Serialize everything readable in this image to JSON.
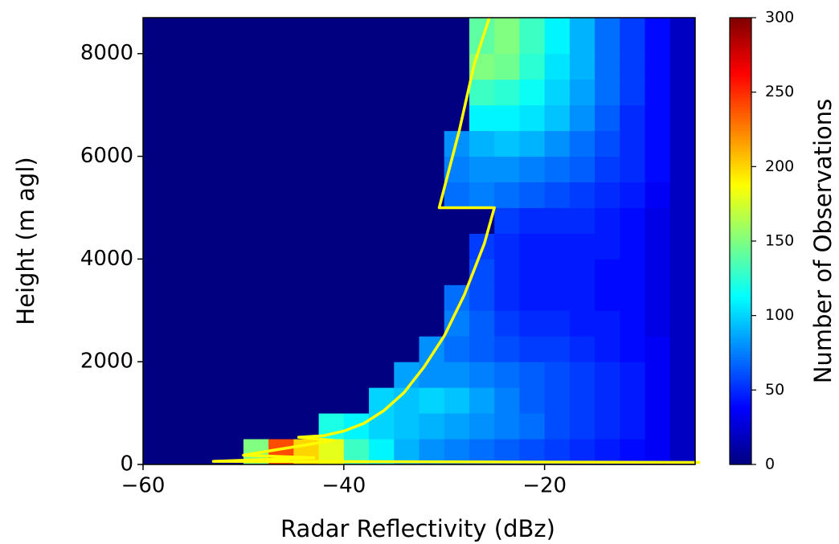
{
  "chart_data": {
    "type": "heatmap",
    "xlabel": "Radar Reflectivity (dBz)",
    "ylabel": "Height (m agl)",
    "colorbar_label": "Number of Observations",
    "colormap": "jet",
    "xlim": [
      -60,
      -5
    ],
    "ylim": [
      0,
      8700
    ],
    "zlim": [
      0,
      300
    ],
    "xticks": [
      {
        "value": -60,
        "label": "−60"
      },
      {
        "value": -40,
        "label": "−40"
      },
      {
        "value": -20,
        "label": "−20"
      }
    ],
    "yticks": [
      0,
      2000,
      4000,
      6000,
      8000
    ],
    "zticks": [
      0,
      50,
      100,
      150,
      200,
      250,
      300
    ],
    "xbins": [
      -60,
      -57.5,
      -55,
      -52.5,
      -50,
      -47.5,
      -45,
      -42.5,
      -40,
      -37.5,
      -35,
      -32.5,
      -30,
      -27.5,
      -25,
      -22.5,
      -20,
      -17.5,
      -15,
      -12.5,
      -10,
      -7.5,
      -5
    ],
    "ybins": [
      0,
      500,
      1000,
      1500,
      2000,
      2500,
      3000,
      3500,
      4000,
      4500,
      5000,
      5500,
      6000,
      6500,
      7000,
      7500,
      8000,
      8700
    ],
    "z": [
      [
        0,
        0,
        0,
        0,
        150,
        240,
        200,
        180,
        130,
        110,
        90,
        80,
        75,
        70,
        65,
        60,
        55,
        50,
        45,
        40,
        35,
        20
      ],
      [
        0,
        0,
        0,
        0,
        0,
        0,
        0,
        120,
        110,
        100,
        95,
        90,
        85,
        80,
        75,
        70,
        60,
        55,
        50,
        45,
        35,
        20
      ],
      [
        0,
        0,
        0,
        0,
        0,
        0,
        0,
        0,
        0,
        100,
        95,
        100,
        95,
        85,
        75,
        65,
        60,
        55,
        50,
        45,
        35,
        20
      ],
      [
        0,
        0,
        0,
        0,
        0,
        0,
        0,
        0,
        0,
        0,
        85,
        80,
        80,
        75,
        70,
        65,
        60,
        55,
        50,
        45,
        35,
        20
      ],
      [
        0,
        0,
        0,
        0,
        0,
        0,
        0,
        0,
        0,
        0,
        0,
        80,
        70,
        65,
        60,
        55,
        55,
        50,
        45,
        40,
        35,
        20
      ],
      [
        0,
        0,
        0,
        0,
        0,
        0,
        0,
        0,
        0,
        0,
        0,
        0,
        75,
        65,
        55,
        50,
        50,
        45,
        45,
        40,
        30,
        20
      ],
      [
        0,
        0,
        0,
        0,
        0,
        0,
        0,
        0,
        0,
        0,
        0,
        0,
        70,
        60,
        50,
        45,
        45,
        45,
        40,
        40,
        30,
        20
      ],
      [
        0,
        0,
        0,
        0,
        0,
        0,
        0,
        0,
        0,
        0,
        0,
        0,
        0,
        60,
        50,
        45,
        45,
        45,
        40,
        40,
        30,
        20
      ],
      [
        0,
        0,
        0,
        0,
        0,
        0,
        0,
        0,
        0,
        0,
        0,
        0,
        0,
        55,
        50,
        45,
        45,
        45,
        45,
        40,
        30,
        20
      ],
      [
        0,
        0,
        0,
        0,
        0,
        0,
        0,
        0,
        0,
        0,
        0,
        0,
        0,
        0,
        55,
        50,
        50,
        50,
        45,
        40,
        30,
        20
      ],
      [
        0,
        0,
        0,
        0,
        0,
        0,
        0,
        0,
        0,
        0,
        0,
        0,
        70,
        75,
        70,
        65,
        60,
        55,
        50,
        45,
        35,
        20
      ],
      [
        0,
        0,
        0,
        0,
        0,
        0,
        0,
        0,
        0,
        0,
        0,
        0,
        75,
        80,
        80,
        75,
        70,
        65,
        55,
        50,
        40,
        20
      ],
      [
        0,
        0,
        0,
        0,
        0,
        0,
        0,
        0,
        0,
        0,
        0,
        0,
        80,
        90,
        95,
        90,
        80,
        70,
        60,
        50,
        40,
        20
      ],
      [
        0,
        0,
        0,
        0,
        0,
        0,
        0,
        0,
        0,
        0,
        0,
        0,
        0,
        110,
        110,
        105,
        95,
        80,
        65,
        50,
        40,
        20
      ],
      [
        0,
        0,
        0,
        0,
        0,
        0,
        0,
        0,
        0,
        0,
        0,
        0,
        0,
        130,
        125,
        115,
        100,
        85,
        70,
        55,
        40,
        20
      ],
      [
        0,
        0,
        0,
        0,
        0,
        0,
        0,
        0,
        0,
        0,
        0,
        0,
        0,
        150,
        145,
        125,
        105,
        90,
        70,
        55,
        40,
        20
      ],
      [
        0,
        0,
        0,
        0,
        0,
        0,
        0,
        0,
        0,
        0,
        0,
        0,
        0,
        140,
        150,
        130,
        110,
        90,
        70,
        55,
        40,
        20
      ]
    ],
    "line": {
      "color": "#ffff00",
      "x": [
        -25.5,
        -27,
        -28.5,
        -30.5,
        -25,
        -26,
        -28,
        -30,
        -32,
        -34,
        -36,
        -38,
        -40,
        -42,
        -44.5,
        -41,
        -50,
        -43,
        -53,
        -4.5
      ],
      "y": [
        8700,
        7800,
        6500,
        5000,
        5000,
        4300,
        3300,
        2500,
        1900,
        1400,
        1050,
        800,
        650,
        560,
        530,
        470,
        180,
        130,
        60,
        40
      ]
    }
  }
}
